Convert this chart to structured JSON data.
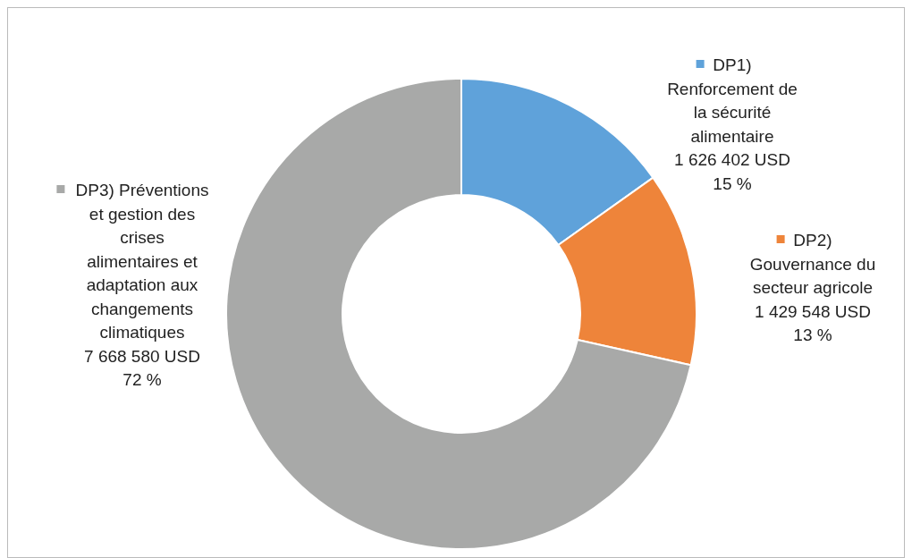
{
  "chart_data": {
    "type": "donut",
    "categories": [
      "DP1) Renforcement de la sécurité alimentaire",
      "DP2) Gouvernance du secteur agricole",
      "DP3) Préventions et gestion des crises alimentaires et adaptation aux changements climatiques"
    ],
    "values": [
      1626402,
      1429548,
      7668580
    ],
    "value_labels": [
      "1 626 402 USD\n15 %",
      "1 429 548 USD\n13 %",
      "7 668 580 USD\n72 %"
    ],
    "colors": [
      "#5fa2da",
      "#ee843a",
      "#a8a9a8"
    ],
    "legend": "right"
  }
}
